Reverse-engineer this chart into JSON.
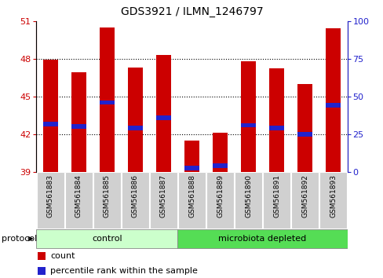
{
  "title": "GDS3921 / ILMN_1246797",
  "samples": [
    "GSM561883",
    "GSM561884",
    "GSM561885",
    "GSM561886",
    "GSM561887",
    "GSM561888",
    "GSM561889",
    "GSM561890",
    "GSM561891",
    "GSM561892",
    "GSM561893"
  ],
  "count_values": [
    47.9,
    46.9,
    50.5,
    47.3,
    48.3,
    41.5,
    42.1,
    47.8,
    47.2,
    46.0,
    50.4
  ],
  "percentile_values": [
    42.8,
    42.6,
    44.5,
    42.5,
    43.3,
    39.3,
    39.5,
    42.7,
    42.5,
    42.0,
    44.3
  ],
  "y_min": 39,
  "y_max": 51,
  "y_ticks_left": [
    39,
    42,
    45,
    48,
    51
  ],
  "y_ticks_right": [
    0,
    25,
    50,
    75,
    100
  ],
  "bar_color": "#cc0000",
  "percentile_color": "#2222cc",
  "control_group_count": 5,
  "microbiota_group_count": 6,
  "control_color": "#ccffcc",
  "microbiota_color": "#55dd55",
  "protocol_label": "protocol",
  "control_label": "control",
  "microbiota_label": "microbiota depleted",
  "legend_count": "count",
  "legend_percentile": "percentile rank within the sample",
  "left_axis_color": "#cc0000",
  "right_axis_color": "#2222cc",
  "grid_ticks": [
    42,
    45,
    48
  ],
  "bg_color": "#ffffff",
  "xlabel_bg": "#d0d0d0",
  "bar_width": 0.55,
  "pct_bar_height": 0.35
}
